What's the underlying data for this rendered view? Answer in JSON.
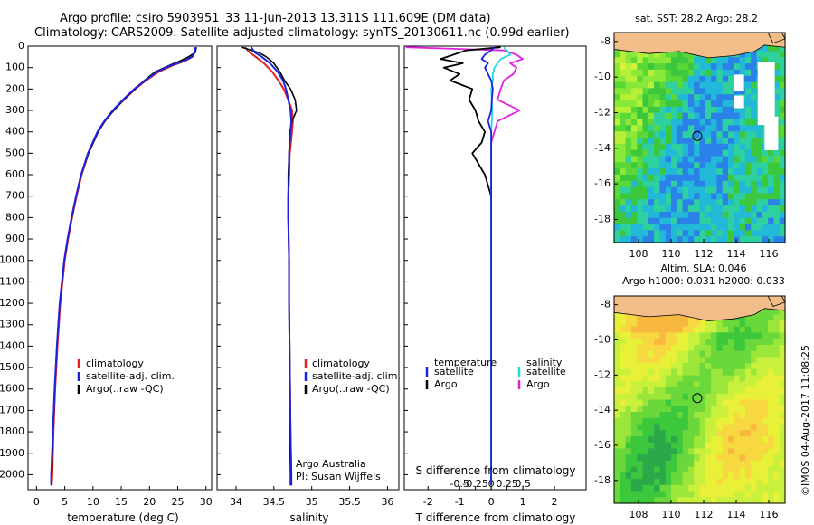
{
  "header": {
    "line1": "Argo profile: csiro 5903951_33 11-Jun-2013 13.311S 111.609E (DM data)",
    "line2": "Climatology: CARS2009. Satellite-adjusted climatology: synTS_20130611.nc (0.99d earlier)"
  },
  "colors": {
    "climatology": "#e0201a",
    "satellite": "#1a24e0",
    "argo": "#000000",
    "satellite_cyan": "#22dde0",
    "argo_magenta": "#e020e0"
  },
  "depth_axis": {
    "ticks": [
      "0",
      "100",
      "200",
      "300",
      "400",
      "500",
      "600",
      "700",
      "800",
      "900",
      "1000",
      "1100",
      "1200",
      "1300",
      "1400",
      "1500",
      "1600",
      "1700",
      "1800",
      "1900",
      "2000"
    ],
    "ylim": [
      0,
      2070
    ]
  },
  "chart_data": [
    {
      "id": "temperature",
      "type": "line",
      "xlabel": "temperature (deg C)",
      "xlim": [
        -1.5,
        31
      ],
      "xticks": [
        "0",
        "5",
        "10",
        "15",
        "20",
        "25",
        "30"
      ],
      "legend": [
        "climatology",
        "satellite-adj. clim.",
        "Argo(..raw -QC)"
      ],
      "depth": [
        5,
        30,
        50,
        70,
        90,
        120,
        160,
        200,
        250,
        300,
        350,
        400,
        500,
        600,
        700,
        800,
        900,
        1000,
        1200,
        1400,
        1600,
        1800,
        2000,
        2050
      ],
      "series": [
        {
          "name": "climatology",
          "values": [
            28.0,
            28.0,
            27.6,
            26.2,
            24.1,
            21.6,
            19.4,
            17.5,
            15.5,
            13.6,
            12.1,
            10.9,
            9.2,
            8.0,
            7.1,
            6.3,
            5.6,
            5.0,
            4.2,
            3.7,
            3.3,
            3.0,
            2.8,
            2.7
          ]
        },
        {
          "name": "satellite-adj. clim.",
          "values": [
            28.1,
            28.0,
            27.5,
            26.0,
            23.8,
            21.3,
            19.2,
            17.3,
            15.3,
            13.5,
            12.0,
            10.8,
            9.1,
            7.9,
            7.0,
            6.2,
            5.5,
            4.9,
            4.1,
            3.6,
            3.2,
            2.9,
            2.6,
            2.6
          ]
        },
        {
          "name": "Argo(..raw -QC)",
          "values": [
            28.3,
            28.1,
            26.9,
            25.3,
            23.5,
            21.0,
            19.1,
            17.4,
            15.4,
            13.7,
            12.1,
            10.9,
            9.2,
            7.9,
            7.0,
            6.2,
            5.5,
            4.9,
            4.1,
            3.6,
            3.2,
            2.9,
            2.7,
            2.7
          ]
        }
      ]
    },
    {
      "id": "salinity",
      "type": "line",
      "xlabel": "salinity",
      "xlim": [
        33.75,
        36.15
      ],
      "xticks": [
        "34",
        "34.5",
        "35",
        "35.5",
        "36"
      ],
      "legend": [
        "climatology",
        "satellite-adj. clim.",
        "Argo(..raw -QC)"
      ],
      "annotation": [
        "Argo Australia",
        "PI: Susan Wijffels"
      ],
      "depth": [
        5,
        30,
        50,
        80,
        120,
        160,
        200,
        250,
        300,
        350,
        400,
        500,
        600,
        700,
        800,
        1000,
        1200,
        1500,
        1800,
        2000,
        2050
      ],
      "series": [
        {
          "name": "climatology",
          "values": [
            34.12,
            34.18,
            34.26,
            34.37,
            34.48,
            34.56,
            34.63,
            34.69,
            34.74,
            34.75,
            34.74,
            34.71,
            34.7,
            34.69,
            34.69,
            34.7,
            34.7,
            34.71,
            34.72,
            34.73,
            34.73
          ]
        },
        {
          "name": "satellite-adj. clim.",
          "values": [
            34.2,
            34.25,
            34.34,
            34.45,
            34.55,
            34.62,
            34.66,
            34.69,
            34.72,
            34.73,
            34.72,
            34.7,
            34.7,
            34.69,
            34.69,
            34.7,
            34.7,
            34.71,
            34.72,
            34.73,
            34.73
          ]
        },
        {
          "name": "Argo(..raw -QC)",
          "values": [
            34.08,
            34.3,
            34.4,
            34.5,
            34.58,
            34.64,
            34.72,
            34.78,
            34.8,
            34.74,
            34.71,
            34.7,
            34.69,
            34.69,
            34.69,
            34.7,
            34.7,
            34.71,
            34.71,
            34.72,
            34.72
          ]
        }
      ]
    },
    {
      "id": "difference",
      "type": "line",
      "xlabel": "T difference from climatology",
      "top_label": "S difference from climatology",
      "xlim": [
        -2.75,
        3.0
      ],
      "xticks": [
        "-2",
        "-1",
        "0",
        "1",
        "2"
      ],
      "s_xticks": [
        "-0.5",
        "-0.25",
        "0",
        "0.25",
        "0.5"
      ],
      "legend_temperature": [
        "temperature",
        "satellite",
        "Argo"
      ],
      "legend_salinity": [
        "salinity",
        "satellite",
        "Argo"
      ],
      "depth": [
        5,
        20,
        40,
        60,
        80,
        100,
        130,
        160,
        200,
        250,
        300,
        350,
        400,
        450,
        500,
        600,
        700,
        800,
        1000,
        1200,
        1500,
        1800,
        2000,
        2050
      ],
      "series": [
        {
          "name": "temperature satellite",
          "values": [
            0.1,
            0.0,
            -0.2,
            -0.3,
            -0.1,
            -0.2,
            -0.1,
            0.0,
            0.05,
            0.02,
            0.0,
            -0.1,
            0.0,
            0.0,
            0.0,
            0.0,
            0.0,
            0.0,
            0.0,
            0.0,
            0.0,
            0.0,
            0.0,
            0.0
          ]
        },
        {
          "name": "temperature Argo",
          "values": [
            0.3,
            -0.8,
            -1.2,
            -1.6,
            -0.9,
            -1.5,
            -1.0,
            -1.3,
            -0.6,
            -0.7,
            -0.5,
            -0.4,
            -0.2,
            -0.3,
            -0.6,
            -0.2,
            0.0,
            0.0,
            0.0,
            0.0,
            0.0,
            0.0,
            0.0,
            0.0
          ]
        },
        {
          "name": "salinity satellite",
          "values": [
            0.4,
            0.5,
            0.6,
            0.3,
            0.2,
            0.1,
            0.05,
            0.05,
            0.0,
            0.02,
            0.03,
            0.02,
            0.0,
            0.0,
            0.0,
            0.0,
            0.0,
            0.0,
            0.0,
            0.0,
            0.0,
            0.0,
            0.0,
            0.0
          ]
        },
        {
          "name": "salinity Argo",
          "values": [
            -2.7,
            0.4,
            0.8,
            1.0,
            0.6,
            0.8,
            0.7,
            0.4,
            0.3,
            0.2,
            0.9,
            0.2,
            0.1,
            0.0,
            0.0,
            0.0,
            0.0,
            0.0,
            0.0,
            0.0,
            0.0,
            0.0,
            0.0,
            0.0
          ]
        }
      ]
    },
    {
      "id": "sst_map",
      "type": "heatmap",
      "title": "sat. SST: 28.2 Argo: 28.2",
      "xticks": [
        "108",
        "110",
        "112",
        "114",
        "116"
      ],
      "yticks": [
        "-8",
        "-10",
        "-12",
        "-14",
        "-16",
        "-18"
      ],
      "xlim": [
        106.5,
        117
      ],
      "ylim": [
        -19.3,
        -7.5
      ],
      "marker": [
        111.609,
        -13.311
      ]
    },
    {
      "id": "sla_map",
      "type": "heatmap",
      "title": "Altim. SLA: 0.046",
      "subtitle": "Argo h1000: 0.031 h2000: 0.033",
      "xticks": [
        "108",
        "110",
        "112",
        "114",
        "116"
      ],
      "yticks": [
        "-8",
        "-10",
        "-12",
        "-14",
        "-16",
        "-18"
      ],
      "xlim": [
        106.5,
        117
      ],
      "ylim": [
        -19.3,
        -7.5
      ],
      "marker": [
        111.609,
        -13.311
      ]
    }
  ],
  "footer": {
    "stamp": "©IMOS 04-Aug-2017 11:08:25"
  }
}
